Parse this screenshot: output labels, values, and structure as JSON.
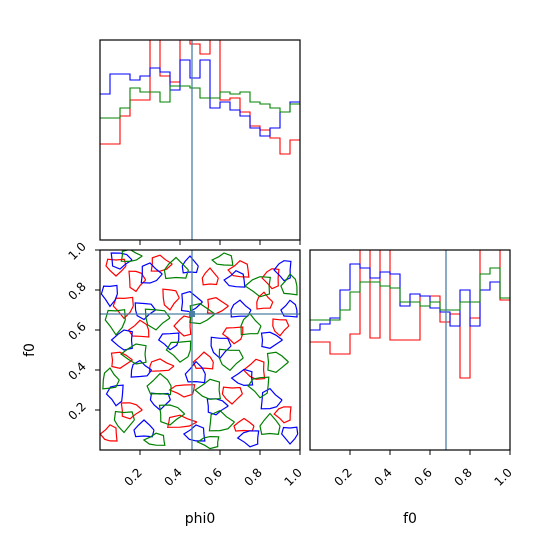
{
  "chart_data": {
    "type": "corner",
    "parameters": [
      "phi0",
      "f0"
    ],
    "xlabels": {
      "phi0_panel": "phi0",
      "f0_panel": "f0"
    },
    "ylabel": "f0",
    "ticks": [
      0.2,
      0.4,
      0.6,
      0.8,
      1.0
    ],
    "tick_labels": [
      "0.2",
      "0.4",
      "0.6",
      "0.8",
      "1.0"
    ],
    "xlim": [
      0,
      1
    ],
    "ylim": [
      0,
      1
    ],
    "truth": {
      "phi0": 0.46,
      "f0": 0.68
    },
    "truth_color": "#4a7fa5",
    "series": [
      {
        "color": "#ff0000"
      },
      {
        "color": "#0000ff"
      },
      {
        "color": "#008000"
      }
    ],
    "hist_phi0": {
      "type": "step-histogram",
      "bin_edges": [
        0.0,
        0.05,
        0.1,
        0.15,
        0.2,
        0.25,
        0.3,
        0.35,
        0.4,
        0.45,
        0.5,
        0.55,
        0.6,
        0.65,
        0.7,
        0.75,
        0.8,
        0.85,
        0.9,
        0.95,
        1.0
      ],
      "ylim": [
        0,
        1.0
      ],
      "counts": [
        [
          0.48,
          0.48,
          0.62,
          0.7,
          0.7,
          1.02,
          0.82,
          0.79,
          1.0,
          0.98,
          0.93,
          1.0,
          0.7,
          0.71,
          0.64,
          0.57,
          0.55,
          0.51,
          0.43,
          0.5
        ],
        [
          0.73,
          0.83,
          0.83,
          0.8,
          0.82,
          0.86,
          0.84,
          0.75,
          0.9,
          0.81,
          0.9,
          0.66,
          0.69,
          0.65,
          0.62,
          0.56,
          0.52,
          0.56,
          0.64,
          0.69
        ],
        [
          0.61,
          0.61,
          0.66,
          0.76,
          0.74,
          0.74,
          0.69,
          0.77,
          0.77,
          0.76,
          0.71,
          0.71,
          0.74,
          0.73,
          0.74,
          0.69,
          0.68,
          0.66,
          0.64,
          0.68
        ]
      ]
    },
    "hist_f0": {
      "type": "step-histogram",
      "bin_edges": [
        0.0,
        0.05,
        0.1,
        0.15,
        0.2,
        0.25,
        0.3,
        0.35,
        0.4,
        0.45,
        0.5,
        0.55,
        0.6,
        0.65,
        0.7,
        0.75,
        0.8,
        0.85,
        0.9,
        0.95,
        1.0
      ],
      "ylim": [
        0,
        1.0
      ],
      "counts": [
        [
          0.54,
          0.54,
          0.48,
          0.48,
          0.58,
          1.02,
          0.56,
          1.0,
          0.55,
          0.55,
          0.55,
          0.77,
          0.77,
          0.64,
          0.68,
          0.36,
          0.66,
          1.0,
          1.0,
          0.75
        ],
        [
          0.6,
          0.63,
          0.66,
          0.8,
          0.93,
          0.91,
          0.86,
          0.89,
          0.88,
          0.72,
          0.78,
          0.77,
          0.71,
          0.69,
          0.62,
          0.8,
          0.62,
          0.8,
          0.84,
          0.76
        ],
        [
          0.65,
          0.65,
          0.65,
          0.7,
          0.79,
          0.84,
          0.84,
          0.82,
          0.81,
          0.74,
          0.74,
          0.72,
          0.74,
          0.7,
          0.7,
          0.74,
          0.74,
          0.88,
          0.91,
          0.76
        ]
      ]
    },
    "contour_2d": {
      "type": "contour",
      "x_param": "phi0",
      "y_param": "f0",
      "note_series_rings": [
        [
          [
            0.08,
            0.92,
            0.05,
            0.04
          ],
          [
            0.18,
            0.85,
            0.04,
            0.05
          ],
          [
            0.3,
            0.93,
            0.05,
            0.04
          ],
          [
            0.55,
            0.86,
            0.04,
            0.04
          ],
          [
            0.7,
            0.9,
            0.05,
            0.04
          ],
          [
            0.86,
            0.86,
            0.04,
            0.05
          ],
          [
            0.12,
            0.72,
            0.05,
            0.05
          ],
          [
            0.35,
            0.76,
            0.04,
            0.05
          ],
          [
            0.58,
            0.72,
            0.05,
            0.04
          ],
          [
            0.82,
            0.74,
            0.04,
            0.04
          ],
          [
            0.2,
            0.6,
            0.05,
            0.04
          ],
          [
            0.42,
            0.62,
            0.04,
            0.05
          ],
          [
            0.67,
            0.58,
            0.05,
            0.04
          ],
          [
            0.9,
            0.62,
            0.04,
            0.04
          ],
          [
            0.1,
            0.45,
            0.05,
            0.04
          ],
          [
            0.3,
            0.42,
            0.06,
            0.03
          ],
          [
            0.52,
            0.44,
            0.05,
            0.04
          ],
          [
            0.78,
            0.4,
            0.05,
            0.05
          ],
          [
            0.42,
            0.3,
            0.06,
            0.03
          ],
          [
            0.66,
            0.28,
            0.05,
            0.04
          ],
          [
            0.15,
            0.2,
            0.05,
            0.04
          ],
          [
            0.4,
            0.14,
            0.07,
            0.03
          ],
          [
            0.72,
            0.12,
            0.05,
            0.03
          ],
          [
            0.05,
            0.08,
            0.04,
            0.04
          ],
          [
            0.92,
            0.18,
            0.04,
            0.04
          ]
        ],
        [
          [
            0.1,
            0.95,
            0.05,
            0.04
          ],
          [
            0.25,
            0.88,
            0.05,
            0.05
          ],
          [
            0.45,
            0.92,
            0.04,
            0.04
          ],
          [
            0.68,
            0.85,
            0.05,
            0.04
          ],
          [
            0.92,
            0.9,
            0.04,
            0.05
          ],
          [
            0.05,
            0.78,
            0.04,
            0.05
          ],
          [
            0.22,
            0.7,
            0.05,
            0.04
          ],
          [
            0.45,
            0.74,
            0.05,
            0.05
          ],
          [
            0.7,
            0.7,
            0.05,
            0.04
          ],
          [
            0.95,
            0.7,
            0.04,
            0.04
          ],
          [
            0.12,
            0.55,
            0.05,
            0.05
          ],
          [
            0.35,
            0.55,
            0.05,
            0.04
          ],
          [
            0.6,
            0.52,
            0.05,
            0.05
          ],
          [
            0.85,
            0.55,
            0.05,
            0.04
          ],
          [
            0.2,
            0.4,
            0.05,
            0.04
          ],
          [
            0.48,
            0.38,
            0.05,
            0.05
          ],
          [
            0.72,
            0.36,
            0.05,
            0.04
          ],
          [
            0.08,
            0.28,
            0.04,
            0.05
          ],
          [
            0.3,
            0.25,
            0.05,
            0.04
          ],
          [
            0.58,
            0.22,
            0.05,
            0.04
          ],
          [
            0.85,
            0.25,
            0.05,
            0.05
          ],
          [
            0.22,
            0.1,
            0.05,
            0.04
          ],
          [
            0.48,
            0.08,
            0.05,
            0.04
          ],
          [
            0.75,
            0.06,
            0.05,
            0.04
          ],
          [
            0.95,
            0.08,
            0.04,
            0.04
          ]
        ],
        [
          [
            0.15,
            0.97,
            0.05,
            0.03
          ],
          [
            0.38,
            0.9,
            0.06,
            0.05
          ],
          [
            0.62,
            0.95,
            0.05,
            0.03
          ],
          [
            0.8,
            0.82,
            0.06,
            0.05
          ],
          [
            0.08,
            0.65,
            0.05,
            0.06
          ],
          [
            0.28,
            0.66,
            0.06,
            0.05
          ],
          [
            0.5,
            0.68,
            0.06,
            0.05
          ],
          [
            0.75,
            0.62,
            0.05,
            0.05
          ],
          [
            0.95,
            0.82,
            0.04,
            0.05
          ],
          [
            0.18,
            0.48,
            0.06,
            0.05
          ],
          [
            0.4,
            0.5,
            0.06,
            0.05
          ],
          [
            0.65,
            0.46,
            0.06,
            0.05
          ],
          [
            0.88,
            0.44,
            0.05,
            0.05
          ],
          [
            0.05,
            0.35,
            0.04,
            0.05
          ],
          [
            0.3,
            0.32,
            0.06,
            0.05
          ],
          [
            0.55,
            0.3,
            0.06,
            0.05
          ],
          [
            0.8,
            0.32,
            0.05,
            0.05
          ],
          [
            0.12,
            0.15,
            0.05,
            0.05
          ],
          [
            0.35,
            0.18,
            0.06,
            0.05
          ],
          [
            0.6,
            0.14,
            0.06,
            0.05
          ],
          [
            0.85,
            0.12,
            0.05,
            0.05
          ],
          [
            0.28,
            0.05,
            0.05,
            0.03
          ],
          [
            0.55,
            0.04,
            0.05,
            0.03
          ]
        ]
      ]
    }
  }
}
